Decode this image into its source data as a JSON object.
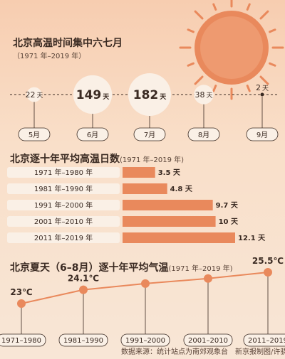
{
  "section1": {
    "title": "北京高温时间集中六七月",
    "subtitle": "（1971 年–2019 年）"
  },
  "section2": {
    "title": "北京逐十年平均高温日数",
    "subtitle": "(1971 年–2019 年)"
  },
  "section3": {
    "title": "北京夏天（6–8月）逐十年平均气温",
    "subtitle": "(1971 年–2019 年)"
  },
  "footer": "数据来源：统计站点为南郊观象台　新京报制图/许骁",
  "colors": {
    "accent": "#e9895c",
    "circle_fill": "#faf0e6",
    "text_dark": "#3a2a22"
  },
  "icons": [
    "sun-icon"
  ],
  "chart_data": [
    {
      "type": "bubble",
      "categories": [
        "5月",
        "6月",
        "7月",
        "8月",
        "9月"
      ],
      "values": [
        22,
        149,
        182,
        38,
        2
      ],
      "value_unit": "天",
      "title": "北京高温时间集中六七月"
    },
    {
      "type": "bar",
      "orientation": "horizontal",
      "categories": [
        "1971 年–1980 年",
        "1981 年–1990 年",
        "1991 年–2000 年",
        "2001 年–2010 年",
        "2011 年–2019 年"
      ],
      "values": [
        3.5,
        4.8,
        9.7,
        10,
        12.1
      ],
      "labels": [
        "3.5 天",
        "4.8 天",
        "9.7 天",
        "10 天",
        "12.1 天"
      ],
      "title": "北京逐十年平均高温日数"
    },
    {
      "type": "line",
      "categories": [
        "1971–1980",
        "1981–1990",
        "1991–2000",
        "2001–2010",
        "2011–2019"
      ],
      "values": [
        23,
        24.1,
        null,
        null,
        25.5
      ],
      "labels": [
        "23℃",
        "24.1℃",
        "",
        "",
        "25.5℃"
      ],
      "title": "北京夏天（6–8月）逐十年平均气温"
    }
  ]
}
